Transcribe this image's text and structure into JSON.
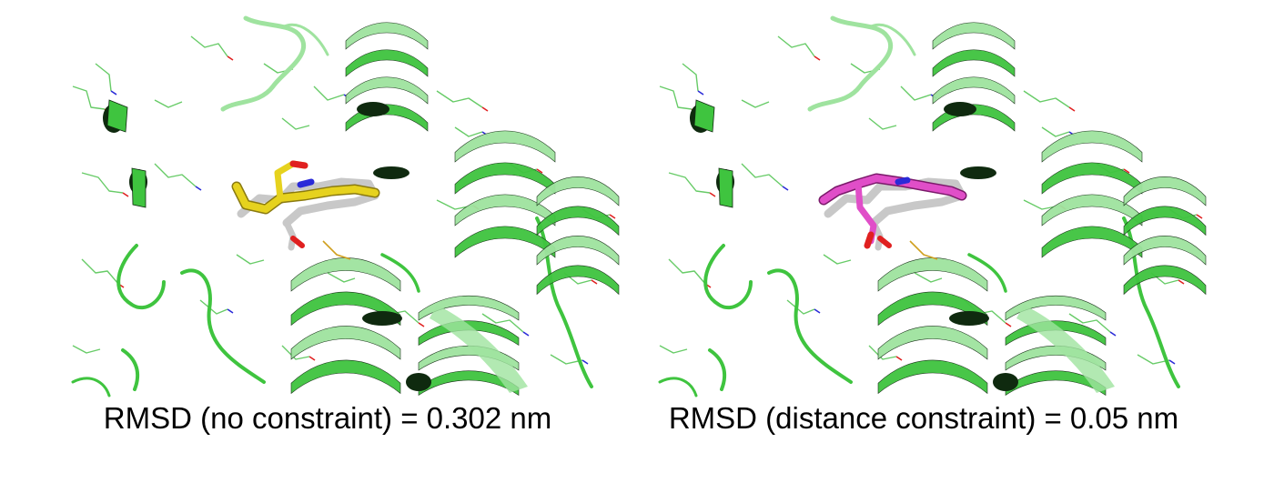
{
  "panels": [
    {
      "id": "left",
      "caption": "RMSD (no constraint) = 0.302 nm",
      "ligand_color": "#e6d21e",
      "ligand_dark": "#8a7a10"
    },
    {
      "id": "right",
      "caption": "RMSD (distance constraint) = 0.05 nm",
      "ligand_color": "#e04ec8",
      "ligand_dark": "#7a1a6a"
    }
  ],
  "colors": {
    "protein_ribbon": "#3fc43f",
    "protein_ribbon_light": "#9fe39f",
    "protein_ribbon_dark": "#0f2a0f",
    "sidechain": "#4cc24c",
    "reference_ligand": "#c8c8c8",
    "nitrogen": "#2a2ad8",
    "oxygen": "#e02020",
    "sulfur": "#d0a020"
  }
}
